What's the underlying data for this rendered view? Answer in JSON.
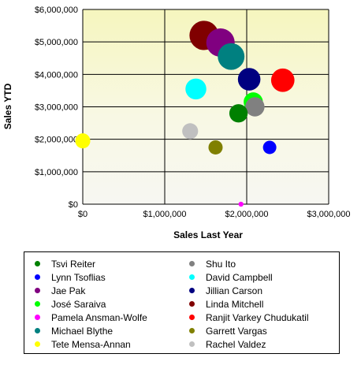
{
  "chart_data": {
    "type": "scatter",
    "subtype": "bubble",
    "xlabel": "Sales Last Year",
    "ylabel": "Sales YTD",
    "xlim": [
      0,
      3000000
    ],
    "ylim": [
      0,
      6000000
    ],
    "x_ticks": [
      "$0",
      "$1,000,000",
      "$2,000,000",
      "$3,000,000"
    ],
    "y_ticks": [
      "$0",
      "$1,000,000",
      "$2,000,000",
      "$3,000,000",
      "$4,000,000",
      "$5,000,000",
      "$6,000,000"
    ],
    "grid": true,
    "legend_position": "bottom",
    "series": [
      {
        "name": "Tsvi Reiter",
        "color": "#008000",
        "x": 1900000,
        "y": 2800000,
        "size": 2.2
      },
      {
        "name": "Lynn Tsoflias",
        "color": "#0000ff",
        "x": 2280000,
        "y": 1750000,
        "size": 1.6
      },
      {
        "name": "Jae Pak",
        "color": "#800080",
        "x": 1680000,
        "y": 4980000,
        "size": 3.4
      },
      {
        "name": "José Saraiva",
        "color": "#00ff00",
        "x": 2080000,
        "y": 3150000,
        "size": 2.3
      },
      {
        "name": "Pamela Ansman-Wolfe",
        "color": "#ff00ff",
        "x": 1930000,
        "y": 0,
        "size": 0.6
      },
      {
        "name": "Michael Blythe",
        "color": "#008080",
        "x": 1810000,
        "y": 4550000,
        "size": 3.2
      },
      {
        "name": "Tete Mensa-Annan",
        "color": "#ffff00",
        "x": 0,
        "y": 1950000,
        "size": 1.8
      },
      {
        "name": "Shu Ito",
        "color": "#808080",
        "x": 2100000,
        "y": 3000000,
        "size": 2.3
      },
      {
        "name": "David Campbell",
        "color": "#00ffff",
        "x": 1380000,
        "y": 3550000,
        "size": 2.5
      },
      {
        "name": "Jillian Carson",
        "color": "#000080",
        "x": 2030000,
        "y": 3850000,
        "size": 2.7
      },
      {
        "name": "Linda Mitchell",
        "color": "#800000",
        "x": 1480000,
        "y": 5200000,
        "size": 3.5
      },
      {
        "name": "Ranjit Varkey Chudukatil",
        "color": "#ff0000",
        "x": 2440000,
        "y": 3820000,
        "size": 2.8
      },
      {
        "name": "Garrett Vargas",
        "color": "#808000",
        "x": 1620000,
        "y": 1750000,
        "size": 1.7
      },
      {
        "name": "Rachel Valdez",
        "color": "#c0c0c0",
        "x": 1310000,
        "y": 2250000,
        "size": 1.9
      }
    ]
  }
}
